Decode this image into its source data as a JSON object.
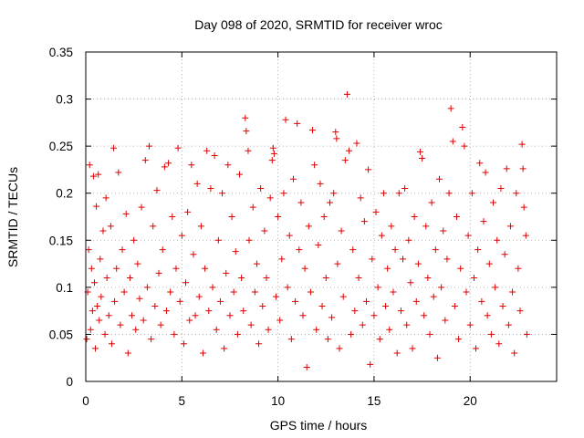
{
  "chart_data": {
    "type": "scatter",
    "title": "Day 098 of 2020, SRMTID for receiver wroc",
    "xlabel": "GPS time / hours",
    "ylabel": "SRMTID / TECUs",
    "xlim": [
      0,
      24.5
    ],
    "ylim": [
      0,
      0.35
    ],
    "x_ticks": [
      0,
      5,
      10,
      15,
      20
    ],
    "x_tick_labels": [
      "0",
      "5",
      "10",
      "15",
      "20"
    ],
    "y_ticks": [
      0,
      0.05,
      0.1,
      0.15,
      0.2,
      0.25,
      0.3,
      0.35
    ],
    "y_tick_labels": [
      "0",
      "0.05",
      "0.1",
      "0.15",
      "0.2",
      "0.25",
      "0.3",
      "0.35"
    ],
    "grid": true,
    "marker": "+",
    "series": [
      {
        "name": "SRMTID",
        "color": "#e00000",
        "points": [
          [
            0.05,
            0.045
          ],
          [
            0.1,
            0.095
          ],
          [
            0.15,
            0.14
          ],
          [
            0.2,
            0.23
          ],
          [
            0.25,
            0.055
          ],
          [
            0.3,
            0.12
          ],
          [
            0.35,
            0.075
          ],
          [
            0.4,
            0.218
          ],
          [
            0.45,
            0.105
          ],
          [
            0.5,
            0.035
          ],
          [
            0.55,
            0.186
          ],
          [
            0.6,
            0.08
          ],
          [
            0.65,
            0.22
          ],
          [
            0.7,
            0.065
          ],
          [
            0.75,
            0.13
          ],
          [
            0.8,
            0.09
          ],
          [
            0.9,
            0.16
          ],
          [
            1.0,
            0.05
          ],
          [
            1.05,
            0.195
          ],
          [
            1.1,
            0.11
          ],
          [
            1.2,
            0.07
          ],
          [
            1.3,
            0.165
          ],
          [
            1.35,
            0.04
          ],
          [
            1.45,
            0.248
          ],
          [
            1.5,
            0.085
          ],
          [
            1.6,
            0.12
          ],
          [
            1.7,
            0.222
          ],
          [
            1.8,
            0.06
          ],
          [
            1.9,
            0.14
          ],
          [
            2.0,
            0.095
          ],
          [
            2.1,
            0.178
          ],
          [
            2.2,
            0.03
          ],
          [
            2.3,
            0.11
          ],
          [
            2.4,
            0.07
          ],
          [
            2.5,
            0.15
          ],
          [
            2.6,
            0.055
          ],
          [
            2.7,
            0.125
          ],
          [
            2.8,
            0.088
          ],
          [
            2.9,
            0.185
          ],
          [
            3.0,
            0.065
          ],
          [
            3.1,
            0.235
          ],
          [
            3.2,
            0.1
          ],
          [
            3.3,
            0.25
          ],
          [
            3.4,
            0.045
          ],
          [
            3.5,
            0.165
          ],
          [
            3.6,
            0.08
          ],
          [
            3.7,
            0.203
          ],
          [
            3.8,
            0.115
          ],
          [
            3.9,
            0.06
          ],
          [
            4.0,
            0.14
          ],
          [
            4.1,
            0.228
          ],
          [
            4.2,
            0.075
          ],
          [
            4.3,
            0.232
          ],
          [
            4.4,
            0.095
          ],
          [
            4.5,
            0.175
          ],
          [
            4.6,
            0.05
          ],
          [
            4.7,
            0.12
          ],
          [
            4.8,
            0.248
          ],
          [
            4.9,
            0.085
          ],
          [
            5.0,
            0.155
          ],
          [
            5.1,
            0.04
          ],
          [
            5.2,
            0.105
          ],
          [
            5.3,
            0.18
          ],
          [
            5.4,
            0.065
          ],
          [
            5.5,
            0.23
          ],
          [
            5.6,
            0.135
          ],
          [
            5.7,
            0.07
          ],
          [
            5.8,
            0.21
          ],
          [
            5.9,
            0.09
          ],
          [
            6.0,
            0.165
          ],
          [
            6.1,
            0.03
          ],
          [
            6.2,
            0.12
          ],
          [
            6.3,
            0.245
          ],
          [
            6.4,
            0.075
          ],
          [
            6.5,
            0.205
          ],
          [
            6.6,
            0.1
          ],
          [
            6.7,
            0.24
          ],
          [
            6.8,
            0.055
          ],
          [
            6.9,
            0.15
          ],
          [
            7.0,
            0.085
          ],
          [
            7.1,
            0.2
          ],
          [
            7.2,
            0.035
          ],
          [
            7.3,
            0.115
          ],
          [
            7.4,
            0.23
          ],
          [
            7.5,
            0.07
          ],
          [
            7.6,
            0.175
          ],
          [
            7.7,
            0.095
          ],
          [
            7.8,
            0.138
          ],
          [
            7.9,
            0.05
          ],
          [
            8.0,
            0.22
          ],
          [
            8.1,
            0.11
          ],
          [
            8.2,
            0.075
          ],
          [
            8.3,
            0.28
          ],
          [
            8.35,
            0.266
          ],
          [
            8.45,
            0.245
          ],
          [
            8.5,
            0.15
          ],
          [
            8.6,
            0.06
          ],
          [
            8.7,
            0.185
          ],
          [
            8.8,
            0.095
          ],
          [
            8.9,
            0.125
          ],
          [
            9.0,
            0.04
          ],
          [
            9.1,
            0.205
          ],
          [
            9.2,
            0.08
          ],
          [
            9.3,
            0.16
          ],
          [
            9.4,
            0.11
          ],
          [
            9.5,
            0.055
          ],
          [
            9.6,
            0.195
          ],
          [
            9.7,
            0.235
          ],
          [
            9.75,
            0.248
          ],
          [
            9.8,
            0.242
          ],
          [
            9.9,
            0.09
          ],
          [
            10.0,
            0.175
          ],
          [
            10.1,
            0.065
          ],
          [
            10.2,
            0.13
          ],
          [
            10.3,
            0.2
          ],
          [
            10.4,
            0.278
          ],
          [
            10.5,
            0.1
          ],
          [
            10.6,
            0.155
          ],
          [
            10.7,
            0.045
          ],
          [
            10.8,
            0.215
          ],
          [
            10.9,
            0.085
          ],
          [
            11.0,
            0.274
          ],
          [
            11.1,
            0.14
          ],
          [
            11.2,
            0.19
          ],
          [
            11.3,
            0.07
          ],
          [
            11.4,
            0.12
          ],
          [
            11.5,
            0.015
          ],
          [
            11.6,
            0.165
          ],
          [
            11.7,
            0.095
          ],
          [
            11.8,
            0.267
          ],
          [
            11.9,
            0.23
          ],
          [
            12.0,
            0.055
          ],
          [
            12.1,
            0.145
          ],
          [
            12.2,
            0.21
          ],
          [
            12.3,
            0.08
          ],
          [
            12.4,
            0.175
          ],
          [
            12.5,
            0.11
          ],
          [
            12.6,
            0.045
          ],
          [
            12.7,
            0.19
          ],
          [
            12.8,
            0.068
          ],
          [
            12.9,
            0.2
          ],
          [
            13.0,
            0.265
          ],
          [
            13.05,
            0.258
          ],
          [
            13.1,
            0.125
          ],
          [
            13.2,
            0.035
          ],
          [
            13.3,
            0.16
          ],
          [
            13.4,
            0.09
          ],
          [
            13.5,
            0.235
          ],
          [
            13.6,
            0.305
          ],
          [
            13.7,
            0.245
          ],
          [
            13.8,
            0.05
          ],
          [
            13.9,
            0.14
          ],
          [
            14.0,
            0.075
          ],
          [
            14.1,
            0.253
          ],
          [
            14.2,
            0.11
          ],
          [
            14.3,
            0.195
          ],
          [
            14.4,
            0.06
          ],
          [
            14.5,
            0.17
          ],
          [
            14.6,
            0.085
          ],
          [
            14.7,
            0.225
          ],
          [
            14.8,
            0.018
          ],
          [
            14.9,
            0.13
          ],
          [
            15.0,
            0.07
          ],
          [
            15.1,
            0.18
          ],
          [
            15.2,
            0.1
          ],
          [
            15.3,
            0.045
          ],
          [
            15.4,
            0.155
          ],
          [
            15.5,
            0.2
          ],
          [
            15.6,
            0.08
          ],
          [
            15.7,
            0.12
          ],
          [
            15.8,
            0.055
          ],
          [
            15.9,
            0.165
          ],
          [
            16.0,
            0.095
          ],
          [
            16.1,
            0.14
          ],
          [
            16.2,
            0.03
          ],
          [
            16.3,
            0.2
          ],
          [
            16.4,
            0.075
          ],
          [
            16.5,
            0.13
          ],
          [
            16.6,
            0.205
          ],
          [
            16.7,
            0.06
          ],
          [
            16.8,
            0.15
          ],
          [
            16.9,
            0.105
          ],
          [
            17.0,
            0.035
          ],
          [
            17.1,
            0.175
          ],
          [
            17.2,
            0.085
          ],
          [
            17.3,
            0.125
          ],
          [
            17.4,
            0.244
          ],
          [
            17.5,
            0.237
          ],
          [
            17.6,
            0.07
          ],
          [
            17.7,
            0.165
          ],
          [
            17.8,
            0.11
          ],
          [
            17.9,
            0.05
          ],
          [
            18.0,
            0.19
          ],
          [
            18.1,
            0.09
          ],
          [
            18.2,
            0.14
          ],
          [
            18.3,
            0.025
          ],
          [
            18.4,
            0.215
          ],
          [
            18.5,
            0.1
          ],
          [
            18.6,
            0.16
          ],
          [
            18.7,
            0.065
          ],
          [
            18.8,
            0.13
          ],
          [
            18.9,
            0.2
          ],
          [
            19.0,
            0.29
          ],
          [
            19.1,
            0.255
          ],
          [
            19.2,
            0.08
          ],
          [
            19.3,
            0.175
          ],
          [
            19.4,
            0.045
          ],
          [
            19.5,
            0.12
          ],
          [
            19.6,
            0.27
          ],
          [
            19.7,
            0.25
          ],
          [
            19.8,
            0.095
          ],
          [
            19.9,
            0.155
          ],
          [
            20.0,
            0.06
          ],
          [
            20.1,
            0.2
          ],
          [
            20.2,
            0.11
          ],
          [
            20.3,
            0.035
          ],
          [
            20.4,
            0.14
          ],
          [
            20.5,
            0.232
          ],
          [
            20.6,
            0.085
          ],
          [
            20.7,
            0.17
          ],
          [
            20.8,
            0.222
          ],
          [
            20.9,
            0.07
          ],
          [
            21.0,
            0.125
          ],
          [
            21.1,
            0.05
          ],
          [
            21.2,
            0.19
          ],
          [
            21.3,
            0.1
          ],
          [
            21.4,
            0.15
          ],
          [
            21.5,
            0.04
          ],
          [
            21.6,
            0.205
          ],
          [
            21.7,
            0.08
          ],
          [
            21.8,
            0.135
          ],
          [
            21.9,
            0.226
          ],
          [
            22.0,
            0.06
          ],
          [
            22.1,
            0.165
          ],
          [
            22.2,
            0.095
          ],
          [
            22.3,
            0.03
          ],
          [
            22.4,
            0.2
          ],
          [
            22.5,
            0.12
          ],
          [
            22.6,
            0.075
          ],
          [
            22.7,
            0.252
          ],
          [
            22.75,
            0.226
          ],
          [
            22.8,
            0.185
          ],
          [
            22.9,
            0.155
          ],
          [
            22.95,
            0.05
          ]
        ]
      }
    ]
  }
}
